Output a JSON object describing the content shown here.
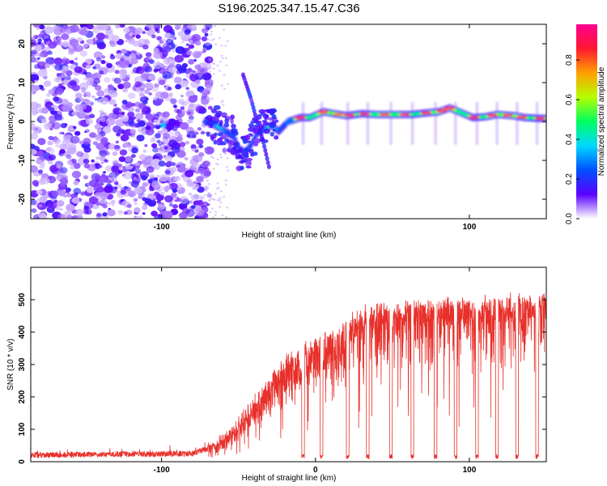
{
  "title": "S196.2025.347.15.47.C36",
  "chart_data": [
    {
      "type": "heatmap",
      "name": "spectrogram",
      "xlabel": "Height of straight line (km)",
      "ylabel": "Frequency (Hz)",
      "xlim": [
        -185,
        150
      ],
      "ylim": [
        -25,
        25
      ],
      "xticks": [
        -100,
        100
      ],
      "xtick_labels": [
        "-100",
        "100"
      ],
      "yticks": [
        20,
        10,
        0,
        -10,
        -20
      ],
      "ytick_labels": [
        "20",
        "10",
        "0",
        "-10",
        "-20"
      ],
      "ridge": [
        {
          "x": -99,
          "y": -1
        },
        {
          "x": -70,
          "y": 0
        },
        {
          "x": -63,
          "y": -1.5
        },
        {
          "x": -57,
          "y": -3
        },
        {
          "x": -53,
          "y": -4
        },
        {
          "x": -50,
          "y": -7
        },
        {
          "x": -46,
          "y": -8
        },
        {
          "x": -42,
          "y": -6
        },
        {
          "x": -38,
          "y": -3
        },
        {
          "x": -34,
          "y": -2
        },
        {
          "x": -29,
          "y": -1
        },
        {
          "x": -24,
          "y": -2.5
        },
        {
          "x": -18,
          "y": 0
        },
        {
          "x": -10,
          "y": 1
        },
        {
          "x": -4,
          "y": 1
        },
        {
          "x": 5,
          "y": 2.5
        },
        {
          "x": 12,
          "y": 2
        },
        {
          "x": 20,
          "y": 1.5
        },
        {
          "x": 30,
          "y": 2
        },
        {
          "x": 40,
          "y": 1.8
        },
        {
          "x": 52,
          "y": 1.8
        },
        {
          "x": 62,
          "y": 1.8
        },
        {
          "x": 72,
          "y": 2.2
        },
        {
          "x": 80,
          "y": 2.5
        },
        {
          "x": 87,
          "y": 3.5
        },
        {
          "x": 93,
          "y": 2.5
        },
        {
          "x": 102,
          "y": 1
        },
        {
          "x": 110,
          "y": 1.2
        },
        {
          "x": 118,
          "y": 1.8
        },
        {
          "x": 128,
          "y": 1.5
        },
        {
          "x": 136,
          "y": 1
        },
        {
          "x": 145,
          "y": 0.8
        }
      ],
      "branch": [
        {
          "x": -47,
          "y": 12
        },
        {
          "x": -42,
          "y": 6
        },
        {
          "x": -38,
          "y": 0
        },
        {
          "x": -34,
          "y": -5
        },
        {
          "x": -30,
          "y": -12
        }
      ],
      "colorbar": {
        "label": "Normalized spectral amplitude",
        "range": [
          0.0,
          0.98
        ],
        "ticks": [
          0.0,
          0.2,
          0.4,
          0.6,
          0.8
        ],
        "tick_labels": [
          "0.0",
          "0.2",
          "0.4",
          "0.6",
          "0.8"
        ],
        "stops": [
          "#ffffff",
          "#5a00ff",
          "#0050ff",
          "#00d8ff",
          "#00ff60",
          "#b4ff00",
          "#ffa000",
          "#ff1830",
          "#ff0090"
        ]
      }
    },
    {
      "type": "line",
      "name": "snr",
      "xlabel": "Height of straight line (km)",
      "ylabel": "SNR (10 * v/v)",
      "xlim": [
        -185,
        150
      ],
      "ylim": [
        0,
        600
      ],
      "xticks": [
        -100,
        0,
        100
      ],
      "xtick_labels": [
        "-100",
        "0",
        "100"
      ],
      "yticks": [
        0,
        100,
        200,
        300,
        400,
        500
      ],
      "ytick_labels": [
        "0",
        "100",
        "200",
        "300",
        "400",
        "500"
      ],
      "color": "#e8302b",
      "envelope": [
        {
          "x": -185,
          "y": 20
        },
        {
          "x": -80,
          "y": 25
        },
        {
          "x": -70,
          "y": 40
        },
        {
          "x": -60,
          "y": 70
        },
        {
          "x": -50,
          "y": 120
        },
        {
          "x": -40,
          "y": 190
        },
        {
          "x": -30,
          "y": 250
        },
        {
          "x": -20,
          "y": 320
        },
        {
          "x": -10,
          "y": 350
        },
        {
          "x": 0,
          "y": 380
        },
        {
          "x": 10,
          "y": 400
        },
        {
          "x": 20,
          "y": 430
        },
        {
          "x": 30,
          "y": 470
        },
        {
          "x": 40,
          "y": 490
        },
        {
          "x": 60,
          "y": 500
        },
        {
          "x": 100,
          "y": 500
        },
        {
          "x": 130,
          "y": 510
        },
        {
          "x": 150,
          "y": 520
        }
      ],
      "dips_x": [
        -8,
        4,
        21,
        34,
        49,
        63,
        78,
        91,
        105,
        118,
        131,
        144
      ]
    }
  ]
}
